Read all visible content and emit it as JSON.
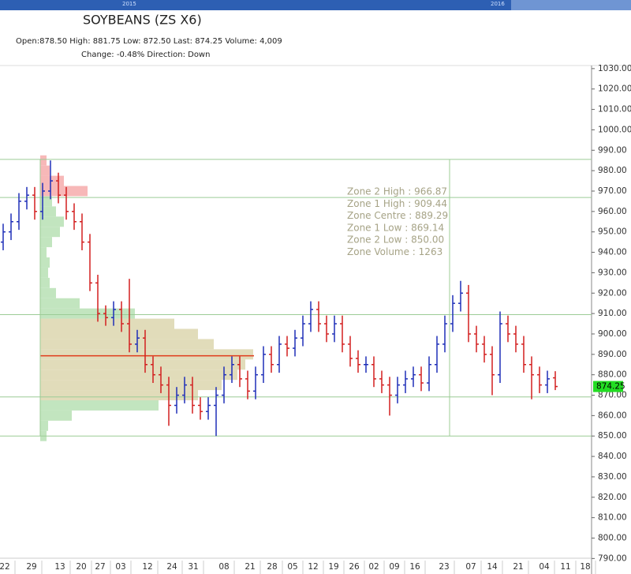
{
  "chart_data": {
    "type": "ohlc",
    "title": "SOYBEANS (ZS X6)",
    "info_line1": "Open:878.50   High: 881.75   Low: 872.50   Last: 874.25   Volume: 4,009",
    "info_line2": "Change: -0.48%   Direction: Down",
    "navigator_labels": [
      "2015",
      "2016"
    ],
    "up_color": "#1f2fb8",
    "down_color": "#d21f1f",
    "x": [
      0,
      1,
      2,
      3,
      4,
      5,
      6,
      7,
      8,
      9,
      10,
      11,
      12,
      13,
      14,
      15,
      16,
      17,
      18,
      19,
      20,
      21,
      22,
      23,
      24,
      25,
      26,
      27,
      28,
      29,
      30,
      31,
      32,
      33,
      34,
      35,
      36,
      37,
      38,
      39,
      40,
      41,
      42,
      43,
      44,
      45,
      46,
      47,
      48,
      49,
      50,
      51,
      52,
      53,
      54,
      55,
      56,
      57,
      58,
      59,
      60,
      61,
      62,
      63,
      64,
      65,
      66,
      67,
      68,
      69,
      70
    ],
    "open": [
      945,
      950,
      955,
      965,
      968,
      960,
      970,
      975,
      968,
      960,
      955,
      945,
      925,
      910,
      908,
      912,
      905,
      895,
      898,
      885,
      880,
      875,
      865,
      870,
      875,
      865,
      862,
      865,
      870,
      880,
      885,
      878,
      872,
      880,
      890,
      885,
      895,
      893,
      898,
      905,
      912,
      905,
      900,
      905,
      895,
      888,
      885,
      885,
      878,
      875,
      870,
      875,
      878,
      880,
      876,
      885,
      895,
      905,
      915,
      920,
      900,
      895,
      890,
      880,
      905,
      900,
      895,
      885,
      880,
      875,
      878.5
    ],
    "high": [
      954,
      959,
      969,
      972,
      972,
      974,
      985,
      979,
      972,
      964,
      959,
      949,
      929,
      914,
      916,
      916,
      927,
      902,
      902,
      889,
      884,
      879,
      874,
      879,
      879,
      869,
      869,
      874,
      884,
      889,
      889,
      882,
      884,
      894,
      894,
      899,
      899,
      902,
      909,
      916,
      916,
      909,
      909,
      909,
      899,
      892,
      889,
      889,
      882,
      879,
      879,
      882,
      884,
      884,
      889,
      899,
      909,
      919,
      926,
      924,
      904,
      899,
      894,
      911,
      909,
      904,
      899,
      889,
      884,
      882,
      881.75
    ],
    "low": [
      941,
      946,
      951,
      961,
      956,
      956,
      966,
      964,
      956,
      951,
      941,
      921,
      906,
      904,
      904,
      901,
      891,
      891,
      881,
      876,
      871,
      855,
      861,
      866,
      861,
      858,
      858,
      850,
      866,
      876,
      874,
      868,
      868,
      876,
      881,
      881,
      889,
      889,
      894,
      901,
      901,
      896,
      896,
      891,
      884,
      881,
      881,
      874,
      871,
      860,
      866,
      871,
      874,
      872,
      872,
      881,
      891,
      901,
      911,
      896,
      891,
      886,
      870,
      876,
      896,
      891,
      881,
      868,
      871,
      871,
      872.5
    ],
    "close": [
      950,
      955,
      965,
      968,
      960,
      970,
      975,
      968,
      960,
      955,
      945,
      925,
      910,
      908,
      912,
      905,
      895,
      898,
      885,
      880,
      875,
      865,
      870,
      875,
      865,
      862,
      865,
      870,
      880,
      885,
      878,
      872,
      880,
      890,
      885,
      895,
      893,
      898,
      905,
      912,
      905,
      900,
      905,
      895,
      888,
      885,
      885,
      878,
      875,
      870,
      875,
      878,
      880,
      876,
      885,
      895,
      905,
      915,
      920,
      900,
      895,
      890,
      880,
      905,
      900,
      895,
      885,
      880,
      875,
      878,
      874.25
    ],
    "xlim": [
      -0.4,
      74.6
    ],
    "xticks": [
      {
        "value": 0.2,
        "label": "22"
      },
      {
        "value": 3.6,
        "label": "29"
      },
      {
        "value": 7.2,
        "label": "13"
      },
      {
        "value": 9.9,
        "label": "20"
      },
      {
        "value": 12.3,
        "label": "27"
      },
      {
        "value": 14.9,
        "label": "03"
      },
      {
        "value": 18.3,
        "label": "12"
      },
      {
        "value": 21.4,
        "label": "24"
      },
      {
        "value": 24.1,
        "label": "31"
      },
      {
        "value": 28,
        "label": "08"
      },
      {
        "value": 31.3,
        "label": "21"
      },
      {
        "value": 34.1,
        "label": "28"
      },
      {
        "value": 36.7,
        "label": "05"
      },
      {
        "value": 39.3,
        "label": "12"
      },
      {
        "value": 41.9,
        "label": "19"
      },
      {
        "value": 44.5,
        "label": "26"
      },
      {
        "value": 47,
        "label": "02"
      },
      {
        "value": 49.6,
        "label": "09"
      },
      {
        "value": 52.2,
        "label": "16"
      },
      {
        "value": 55.9,
        "label": "23"
      },
      {
        "value": 59.3,
        "label": "07"
      },
      {
        "value": 62,
        "label": "14"
      },
      {
        "value": 65.3,
        "label": "21"
      },
      {
        "value": 68.6,
        "label": "04"
      },
      {
        "value": 71.3,
        "label": "11"
      },
      {
        "value": 73.8,
        "label": "18"
      }
    ],
    "ylim": [
      788.2,
      1031.5
    ],
    "yticks": [
      {
        "value": 1030,
        "label": "1030.00"
      },
      {
        "value": 1020,
        "label": "1020.00"
      },
      {
        "value": 1010,
        "label": "1010.00"
      },
      {
        "value": 1000,
        "label": "1000.00"
      },
      {
        "value": 990,
        "label": "990.00"
      },
      {
        "value": 980,
        "label": "980.00"
      },
      {
        "value": 970,
        "label": "970.00"
      },
      {
        "value": 960,
        "label": "960.00"
      },
      {
        "value": 950,
        "label": "950.00"
      },
      {
        "value": 940,
        "label": "940.00"
      },
      {
        "value": 930,
        "label": "930.00"
      },
      {
        "value": 920,
        "label": "920.00"
      },
      {
        "value": 910,
        "label": "910.00"
      },
      {
        "value": 900,
        "label": "900.00"
      },
      {
        "value": 890,
        "label": "890.00"
      },
      {
        "value": 880,
        "label": "880.00"
      },
      {
        "value": 870,
        "label": "870.00"
      },
      {
        "value": 860,
        "label": "860.00"
      },
      {
        "value": 850,
        "label": "850.00"
      },
      {
        "value": 840,
        "label": "840.00"
      },
      {
        "value": 830,
        "label": "830.00"
      },
      {
        "value": 820,
        "label": "820.00"
      },
      {
        "value": 810,
        "label": "810.00"
      },
      {
        "value": 800,
        "label": "800.00"
      },
      {
        "value": 790,
        "label": "790.00"
      }
    ],
    "last_price": {
      "value": 874.25,
      "label": "874.25",
      "color": "#22dd22"
    },
    "zones": [
      {
        "label": "Zone 2 High : 966.87",
        "value": 966.87
      },
      {
        "label": "Zone 1 High : 909.44",
        "value": 909.44
      },
      {
        "label": "Zone Centre : 889.29",
        "value": 889.29
      },
      {
        "label": "Zone 1 Low : 869.14",
        "value": 869.14
      },
      {
        "label": "Zone 2 Low : 850.00",
        "value": 850.0
      }
    ],
    "zone_volume": "Zone Volume : 1263",
    "profile_high": 985.5,
    "profile": {
      "prices": [
        850,
        855,
        860,
        865,
        870,
        875,
        880,
        885,
        890,
        895,
        900,
        905,
        910,
        915,
        920,
        925,
        930,
        935,
        940,
        945,
        950,
        955,
        960,
        965,
        970,
        975,
        980,
        985
      ],
      "volumes": [
        8,
        10,
        40,
        150,
        200,
        230,
        250,
        260,
        270,
        220,
        200,
        170,
        120,
        50,
        20,
        12,
        10,
        12,
        8,
        15,
        25,
        30,
        20,
        15,
        60,
        30,
        12,
        8
      ],
      "colors": {
        "outer": "#b7e0b4",
        "inner": "#dcd6ae",
        "upper": "#f6abab"
      }
    }
  }
}
